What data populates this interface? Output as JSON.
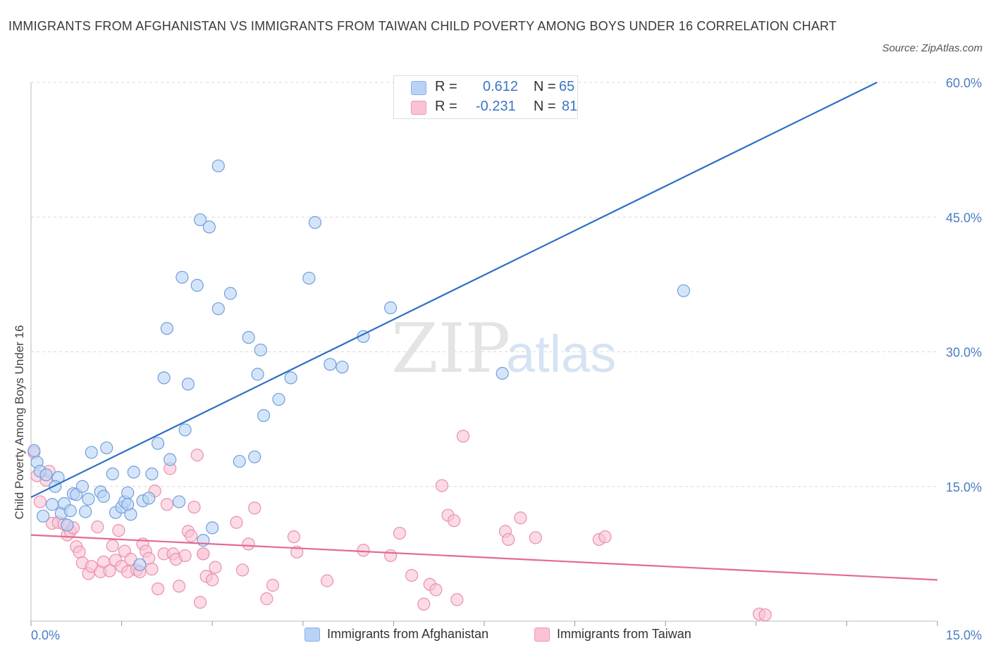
{
  "title": "IMMIGRANTS FROM AFGHANISTAN VS IMMIGRANTS FROM TAIWAN CHILD POVERTY AMONG BOYS UNDER 16 CORRELATION CHART",
  "source": "Source: ZipAtlas.com",
  "watermark": {
    "zip": "ZIP",
    "atlas": "atlas"
  },
  "legend": {
    "r_label": "R =",
    "n_label": "N =",
    "rows": [
      {
        "r": "0.612",
        "n": "65",
        "color": "#b9d3f5",
        "border": "#8ab0e8"
      },
      {
        "r": "-0.231",
        "n": "81",
        "color": "#f9c3d3",
        "border": "#ee9ab3"
      }
    ]
  },
  "colors": {
    "blue_fill": "#b9d3f5",
    "blue_stroke": "#6f9fdc",
    "blue_line": "#2b6fc6",
    "pink_fill": "#f9c3d3",
    "pink_stroke": "#ea8fae",
    "pink_line": "#e36a94",
    "grid": "#d8d8d8",
    "tick_label": "#4a7cc4"
  },
  "chart_data": {
    "type": "scatter",
    "title": "IMMIGRANTS FROM AFGHANISTAN VS IMMIGRANTS FROM TAIWAN CHILD POVERTY AMONG BOYS UNDER 16 CORRELATION CHART",
    "xlabel": "",
    "ylabel": "Child Poverty Among Boys Under 16",
    "xlim": [
      0,
      15
    ],
    "ylim": [
      0,
      60
    ],
    "x_tick_labels": [
      "0.0%",
      "15.0%"
    ],
    "y_ticks": [
      15,
      30,
      45,
      60
    ],
    "y_tick_labels": [
      "15.0%",
      "30.0%",
      "45.0%",
      "60.0%"
    ],
    "grid": true,
    "legend_position": "bottom",
    "series": [
      {
        "name": "Immigrants from Afghanistan",
        "color": "#b9d3f5",
        "points": [
          [
            0.05,
            19.0
          ],
          [
            0.1,
            17.7
          ],
          [
            0.15,
            16.7
          ],
          [
            0.25,
            16.3
          ],
          [
            0.45,
            16.0
          ],
          [
            0.4,
            15.0
          ],
          [
            0.2,
            11.7
          ],
          [
            0.35,
            13.0
          ],
          [
            0.5,
            12.0
          ],
          [
            0.55,
            13.1
          ],
          [
            0.6,
            10.7
          ],
          [
            0.65,
            12.3
          ],
          [
            0.7,
            14.2
          ],
          [
            0.75,
            14.1
          ],
          [
            0.85,
            15.0
          ],
          [
            0.9,
            12.2
          ],
          [
            0.95,
            13.6
          ],
          [
            1.0,
            18.8
          ],
          [
            1.15,
            14.4
          ],
          [
            1.2,
            13.9
          ],
          [
            1.25,
            19.3
          ],
          [
            1.35,
            16.4
          ],
          [
            1.4,
            12.1
          ],
          [
            1.5,
            12.7
          ],
          [
            1.55,
            13.3
          ],
          [
            1.6,
            14.3
          ],
          [
            1.65,
            11.9
          ],
          [
            1.7,
            16.6
          ],
          [
            1.8,
            6.3
          ],
          [
            1.85,
            13.4
          ],
          [
            1.95,
            13.7
          ],
          [
            2.0,
            16.4
          ],
          [
            2.1,
            19.8
          ],
          [
            2.2,
            27.1
          ],
          [
            2.25,
            32.6
          ],
          [
            2.3,
            18.0
          ],
          [
            2.45,
            13.3
          ],
          [
            2.5,
            38.3
          ],
          [
            2.55,
            21.3
          ],
          [
            2.6,
            26.4
          ],
          [
            2.75,
            37.4
          ],
          [
            2.8,
            44.7
          ],
          [
            2.85,
            9.0
          ],
          [
            2.95,
            43.9
          ],
          [
            3.0,
            10.4
          ],
          [
            3.1,
            34.8
          ],
          [
            3.1,
            50.7
          ],
          [
            3.3,
            36.5
          ],
          [
            3.45,
            17.8
          ],
          [
            3.6,
            31.6
          ],
          [
            3.7,
            18.3
          ],
          [
            3.75,
            27.5
          ],
          [
            3.8,
            30.2
          ],
          [
            3.85,
            22.9
          ],
          [
            4.1,
            24.7
          ],
          [
            4.3,
            27.1
          ],
          [
            4.6,
            38.2
          ],
          [
            4.7,
            44.4
          ],
          [
            4.95,
            28.6
          ],
          [
            5.15,
            28.3
          ],
          [
            5.5,
            31.7
          ],
          [
            5.95,
            34.9
          ],
          [
            7.8,
            27.6
          ],
          [
            10.8,
            36.8
          ],
          [
            1.6,
            13.0
          ]
        ]
      },
      {
        "name": "Immigrants from Taiwan",
        "color": "#f9c3d3",
        "points": [
          [
            0.05,
            18.8
          ],
          [
            0.1,
            16.2
          ],
          [
            0.15,
            13.3
          ],
          [
            0.25,
            15.7
          ],
          [
            0.3,
            16.7
          ],
          [
            0.35,
            10.9
          ],
          [
            0.45,
            11.0
          ],
          [
            0.55,
            10.8
          ],
          [
            0.6,
            9.6
          ],
          [
            0.65,
            10.0
          ],
          [
            0.7,
            10.4
          ],
          [
            0.75,
            8.3
          ],
          [
            0.8,
            7.7
          ],
          [
            0.85,
            6.5
          ],
          [
            0.95,
            5.3
          ],
          [
            1.0,
            6.1
          ],
          [
            1.1,
            10.5
          ],
          [
            1.15,
            5.5
          ],
          [
            1.2,
            6.6
          ],
          [
            1.3,
            5.6
          ],
          [
            1.35,
            8.4
          ],
          [
            1.4,
            6.8
          ],
          [
            1.45,
            10.1
          ],
          [
            1.5,
            6.1
          ],
          [
            1.55,
            7.8
          ],
          [
            1.6,
            5.5
          ],
          [
            1.65,
            6.9
          ],
          [
            1.75,
            5.7
          ],
          [
            1.8,
            5.5
          ],
          [
            1.85,
            8.6
          ],
          [
            1.9,
            7.8
          ],
          [
            1.95,
            7.0
          ],
          [
            2.0,
            5.8
          ],
          [
            2.05,
            14.5
          ],
          [
            2.1,
            3.6
          ],
          [
            2.2,
            7.5
          ],
          [
            2.25,
            13.0
          ],
          [
            2.3,
            17.0
          ],
          [
            2.35,
            7.5
          ],
          [
            2.4,
            6.9
          ],
          [
            2.45,
            3.9
          ],
          [
            2.55,
            7.3
          ],
          [
            2.6,
            10.0
          ],
          [
            2.65,
            9.5
          ],
          [
            2.7,
            12.7
          ],
          [
            2.75,
            18.5
          ],
          [
            2.8,
            2.1
          ],
          [
            2.85,
            7.5
          ],
          [
            2.9,
            5.0
          ],
          [
            3.0,
            4.6
          ],
          [
            3.05,
            6.0
          ],
          [
            3.4,
            11.0
          ],
          [
            3.5,
            5.7
          ],
          [
            3.6,
            8.6
          ],
          [
            3.7,
            12.6
          ],
          [
            3.9,
            2.5
          ],
          [
            4.0,
            4.0
          ],
          [
            4.35,
            9.4
          ],
          [
            4.4,
            7.7
          ],
          [
            4.9,
            4.5
          ],
          [
            5.5,
            7.9
          ],
          [
            5.95,
            7.3
          ],
          [
            6.1,
            9.8
          ],
          [
            6.3,
            5.1
          ],
          [
            6.5,
            1.9
          ],
          [
            6.6,
            4.1
          ],
          [
            6.7,
            3.5
          ],
          [
            6.8,
            15.1
          ],
          [
            6.9,
            11.8
          ],
          [
            7.0,
            11.2
          ],
          [
            7.05,
            2.4
          ],
          [
            7.15,
            20.6
          ],
          [
            7.85,
            10.0
          ],
          [
            7.9,
            9.1
          ],
          [
            8.1,
            11.5
          ],
          [
            8.35,
            9.3
          ],
          [
            9.4,
            9.1
          ],
          [
            9.5,
            9.4
          ],
          [
            12.05,
            0.8
          ],
          [
            12.15,
            0.7
          ],
          [
            2.85,
            7.5
          ]
        ]
      }
    ],
    "trend_lines": [
      {
        "series": "Immigrants from Afghanistan",
        "from": [
          0,
          13.8
        ],
        "to": [
          14.0,
          60.0
        ]
      },
      {
        "series": "Immigrants from Taiwan",
        "from": [
          0,
          9.6
        ],
        "to": [
          15.0,
          4.6
        ]
      }
    ]
  }
}
